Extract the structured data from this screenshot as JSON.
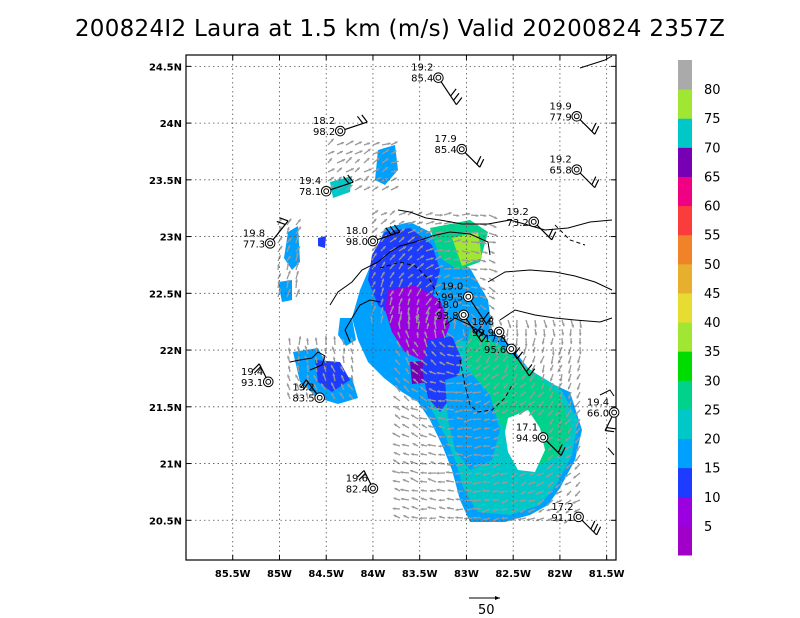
{
  "chart_data": {
    "type": "wind-analysis-map",
    "title": "200824I2 Laura at 1.5 km (m/s) Valid 20200824 2357Z",
    "xlim": [
      -86.0,
      -81.4
    ],
    "ylim": [
      20.15,
      24.6
    ],
    "x_ticks": [
      {
        "value": -85.5,
        "label": "85.5W"
      },
      {
        "value": -85.0,
        "label": "85W"
      },
      {
        "value": -84.5,
        "label": "84.5W"
      },
      {
        "value": -84.0,
        "label": "84W"
      },
      {
        "value": -83.5,
        "label": "83.5W"
      },
      {
        "value": -83.0,
        "label": "83W"
      },
      {
        "value": -82.5,
        "label": "82.5W"
      },
      {
        "value": -82.0,
        "label": "82W"
      },
      {
        "value": -81.5,
        "label": "81.5W"
      }
    ],
    "y_ticks": [
      {
        "value": 20.5,
        "label": "20.5N"
      },
      {
        "value": 21.0,
        "label": "21N"
      },
      {
        "value": 21.5,
        "label": "21.5N"
      },
      {
        "value": 22.0,
        "label": "22N"
      },
      {
        "value": 22.5,
        "label": "22.5N"
      },
      {
        "value": 23.0,
        "label": "23N"
      },
      {
        "value": 23.5,
        "label": "23.5N"
      },
      {
        "value": 24.0,
        "label": "24N"
      },
      {
        "value": 24.5,
        "label": "24.5N"
      }
    ],
    "grid": true,
    "colorbar": {
      "levels": [
        "5",
        "10",
        "15",
        "20",
        "25",
        "30",
        "35",
        "40",
        "45",
        "50",
        "55",
        "60",
        "65",
        "70",
        "75",
        "80"
      ],
      "colors": [
        "#a000c8",
        "#9a00e0",
        "#1e3cff",
        "#00a0ff",
        "#00c8c8",
        "#00d28c",
        "#00dc00",
        "#a0e632",
        "#e6dc32",
        "#e6af2d",
        "#f08228",
        "#fa3c3c",
        "#f00082",
        "#7800b4",
        "#00c8c8",
        "#a0e632",
        "#aaaaaa"
      ]
    },
    "reference_vector": {
      "label": "50"
    },
    "stations": [
      {
        "lon": -83.3,
        "lat": 24.4,
        "top": "19.2",
        "bottom": "85.4"
      },
      {
        "lon": -84.35,
        "lat": 23.93,
        "top": "18.2",
        "bottom": "98.2"
      },
      {
        "lon": -83.05,
        "lat": 23.77,
        "top": "17.9",
        "bottom": "85.4"
      },
      {
        "lon": -81.82,
        "lat": 24.06,
        "top": "19.9",
        "bottom": "77.9"
      },
      {
        "lon": -81.82,
        "lat": 23.59,
        "top": "19.2",
        "bottom": "65.8"
      },
      {
        "lon": -84.5,
        "lat": 23.4,
        "top": "19.4",
        "bottom": "78.1"
      },
      {
        "lon": -85.1,
        "lat": 22.94,
        "top": "19.8",
        "bottom": "77.3"
      },
      {
        "lon": -84.0,
        "lat": 22.96,
        "top": "18.0",
        "bottom": "98.0"
      },
      {
        "lon": -82.28,
        "lat": 23.13,
        "top": "19.2",
        "bottom": "73.2"
      },
      {
        "lon": -82.98,
        "lat": 22.47,
        "top": "19.0",
        "bottom": "99.5"
      },
      {
        "lon": -83.03,
        "lat": 22.31,
        "top": "18.0",
        "bottom": "93.8"
      },
      {
        "lon": -82.65,
        "lat": 22.16,
        "top": "18.8",
        "bottom": "99.9"
      },
      {
        "lon": -82.52,
        "lat": 22.01,
        "top": "17.8",
        "bottom": "95.6"
      },
      {
        "lon": -85.12,
        "lat": 21.72,
        "top": "19.4",
        "bottom": "93.1"
      },
      {
        "lon": -84.57,
        "lat": 21.58,
        "top": "19.2",
        "bottom": "83.5"
      },
      {
        "lon": -81.42,
        "lat": 21.45,
        "top": "19.4",
        "bottom": "66.0"
      },
      {
        "lon": -82.18,
        "lat": 21.23,
        "top": "17.1",
        "bottom": "94.9"
      },
      {
        "lon": -84.0,
        "lat": 20.78,
        "top": "19.6",
        "bottom": "82.4"
      },
      {
        "lon": -81.8,
        "lat": 20.53,
        "top": "17.2",
        "bottom": "91.1"
      }
    ]
  }
}
